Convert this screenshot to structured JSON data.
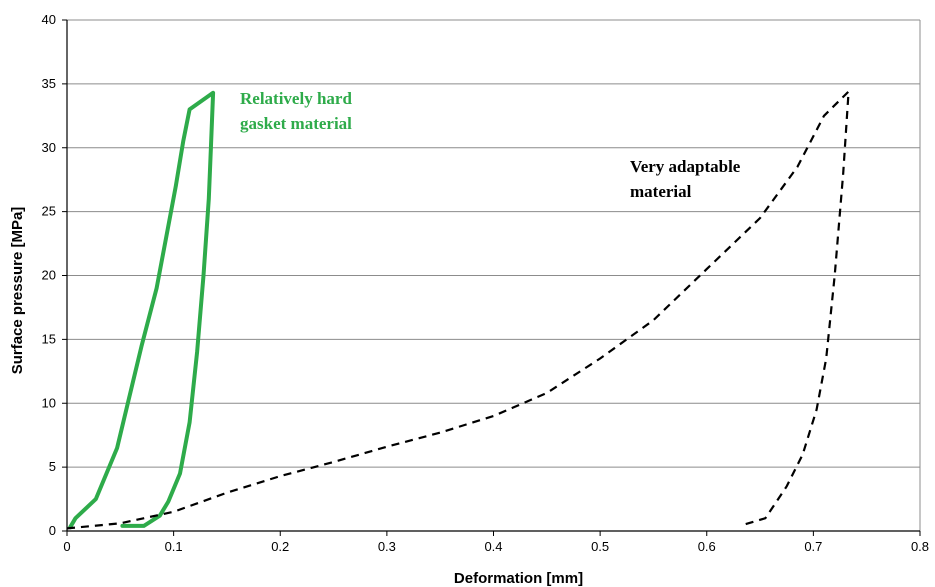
{
  "chart_data": {
    "type": "line",
    "title": "",
    "xlabel": "Deformation [mm]",
    "ylabel": "Surface pressure [MPa]",
    "xlim": [
      0,
      0.8
    ],
    "ylim": [
      0,
      40
    ],
    "xticks": [
      "0",
      "0.1",
      "0.2",
      "0.3",
      "0.4",
      "0.5",
      "0.6",
      "0.7",
      "0.8"
    ],
    "yticks": [
      "0",
      "5",
      "10",
      "15",
      "20",
      "25",
      "30",
      "35",
      "40"
    ],
    "grid": "horizontal",
    "series": [
      {
        "color": "#2eab4a",
        "style": "solid",
        "points": [
          [
            0.003,
            0.3
          ],
          [
            0.008,
            1.0
          ],
          [
            0.027,
            2.5
          ],
          [
            0.047,
            6.5
          ],
          [
            0.057,
            10.0
          ],
          [
            0.07,
            14.5
          ],
          [
            0.084,
            19.0
          ],
          [
            0.093,
            23.0
          ],
          [
            0.102,
            27.0
          ],
          [
            0.109,
            30.5
          ],
          [
            0.115,
            33.0
          ],
          [
            0.137,
            34.3
          ],
          [
            0.135,
            30.0
          ],
          [
            0.133,
            26.0
          ],
          [
            0.128,
            20.0
          ],
          [
            0.122,
            14.0
          ],
          [
            0.115,
            8.5
          ],
          [
            0.106,
            4.5
          ],
          [
            0.095,
            2.3
          ],
          [
            0.087,
            1.2
          ],
          [
            0.072,
            0.4
          ],
          [
            0.052,
            0.4
          ]
        ]
      },
      {
        "color": "#000000",
        "style": "dashed",
        "points": [
          [
            0.0,
            0.2
          ],
          [
            0.05,
            0.6
          ],
          [
            0.1,
            1.5
          ],
          [
            0.15,
            3.0
          ],
          [
            0.2,
            4.3
          ],
          [
            0.25,
            5.4
          ],
          [
            0.3,
            6.6
          ],
          [
            0.35,
            7.7
          ],
          [
            0.4,
            9.0
          ],
          [
            0.45,
            10.8
          ],
          [
            0.5,
            13.5
          ],
          [
            0.55,
            16.5
          ],
          [
            0.6,
            20.5
          ],
          [
            0.65,
            24.5
          ],
          [
            0.685,
            28.5
          ],
          [
            0.71,
            32.5
          ],
          [
            0.733,
            34.4
          ],
          [
            0.728,
            28.0
          ],
          [
            0.72,
            20.0
          ],
          [
            0.712,
            13.5
          ],
          [
            0.703,
            9.5
          ],
          [
            0.69,
            6.0
          ],
          [
            0.675,
            3.5
          ],
          [
            0.655,
            1.0
          ],
          [
            0.635,
            0.5
          ]
        ]
      }
    ],
    "annotations": [
      {
        "lines": [
          "Relatively hard",
          "gasket material"
        ],
        "color": "#2eab4a"
      },
      {
        "lines": [
          "Very adaptable",
          "material"
        ],
        "color": "#000000"
      }
    ]
  }
}
